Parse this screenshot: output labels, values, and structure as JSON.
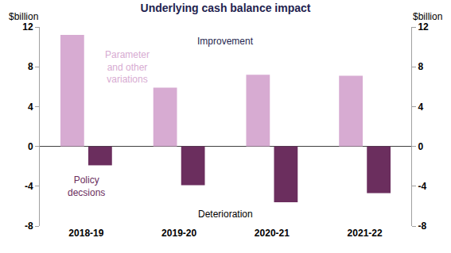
{
  "chart_data": {
    "type": "bar",
    "title": "Underlying cash balance impact",
    "y_label": "$billion",
    "y2_label": "$billion",
    "categories": [
      "2018-19",
      "2019-20",
      "2020-21",
      "2021-22"
    ],
    "series": [
      {
        "name": "Parameter and other variations",
        "color": "#d7abd2",
        "values": [
          11.2,
          5.9,
          7.2,
          7.1
        ]
      },
      {
        "name": "Policy decsions",
        "color": "#6b2e5e",
        "values": [
          -1.9,
          -3.9,
          -5.6,
          -4.7
        ]
      }
    ],
    "annotations": [
      "Improvement",
      "Deterioration"
    ],
    "ylim": [
      -8,
      12
    ],
    "yticks": [
      -8,
      -4,
      0,
      4,
      8,
      12
    ],
    "y2lim": [
      -8,
      12
    ],
    "y2ticks": [
      -8,
      -4,
      0,
      4,
      8,
      12
    ],
    "grid": false
  }
}
